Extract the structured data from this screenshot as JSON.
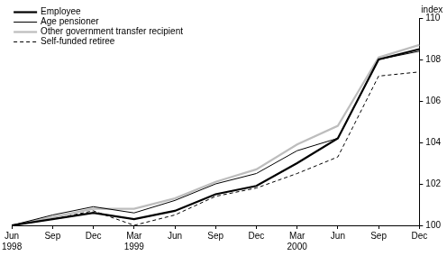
{
  "chart_data": {
    "type": "line",
    "y_label": "index",
    "categories": [
      "Jun\n1998",
      "Sep",
      "Dec",
      "Mar\n1999",
      "Jun",
      "Sep",
      "Dec",
      "Mar\n2000",
      "Jun",
      "Sep",
      "Dec"
    ],
    "series": [
      {
        "name": "Employee",
        "color": "#000000",
        "line_style": "solid",
        "values": [
          100,
          100.3,
          100.6,
          100.3,
          100.7,
          101.5,
          101.9,
          103.0,
          104.2,
          108.0,
          108.5
        ]
      },
      {
        "name": "Age pensioner",
        "color": "#000000",
        "line_style": "solid",
        "values": [
          100,
          100.5,
          100.9,
          100.6,
          101.2,
          102.0,
          102.5,
          103.6,
          104.2,
          108.0,
          108.4
        ]
      },
      {
        "name": "Other government transfer recipient",
        "color": "#bdbdbd",
        "line_style": "solid",
        "values": [
          100,
          100.4,
          100.8,
          100.8,
          101.3,
          102.1,
          102.7,
          103.9,
          104.8,
          108.1,
          108.7
        ]
      },
      {
        "name": "Self-funded retiree",
        "color": "#000000",
        "line_style": "dashed",
        "values": [
          100,
          100.3,
          100.7,
          100.0,
          100.5,
          101.4,
          101.8,
          102.5,
          103.3,
          107.2,
          107.4
        ]
      }
    ],
    "ylim": [
      100,
      110
    ],
    "yticks": [
      100,
      102,
      104,
      106,
      108,
      110
    ],
    "grid": false,
    "legend": "top-left"
  }
}
